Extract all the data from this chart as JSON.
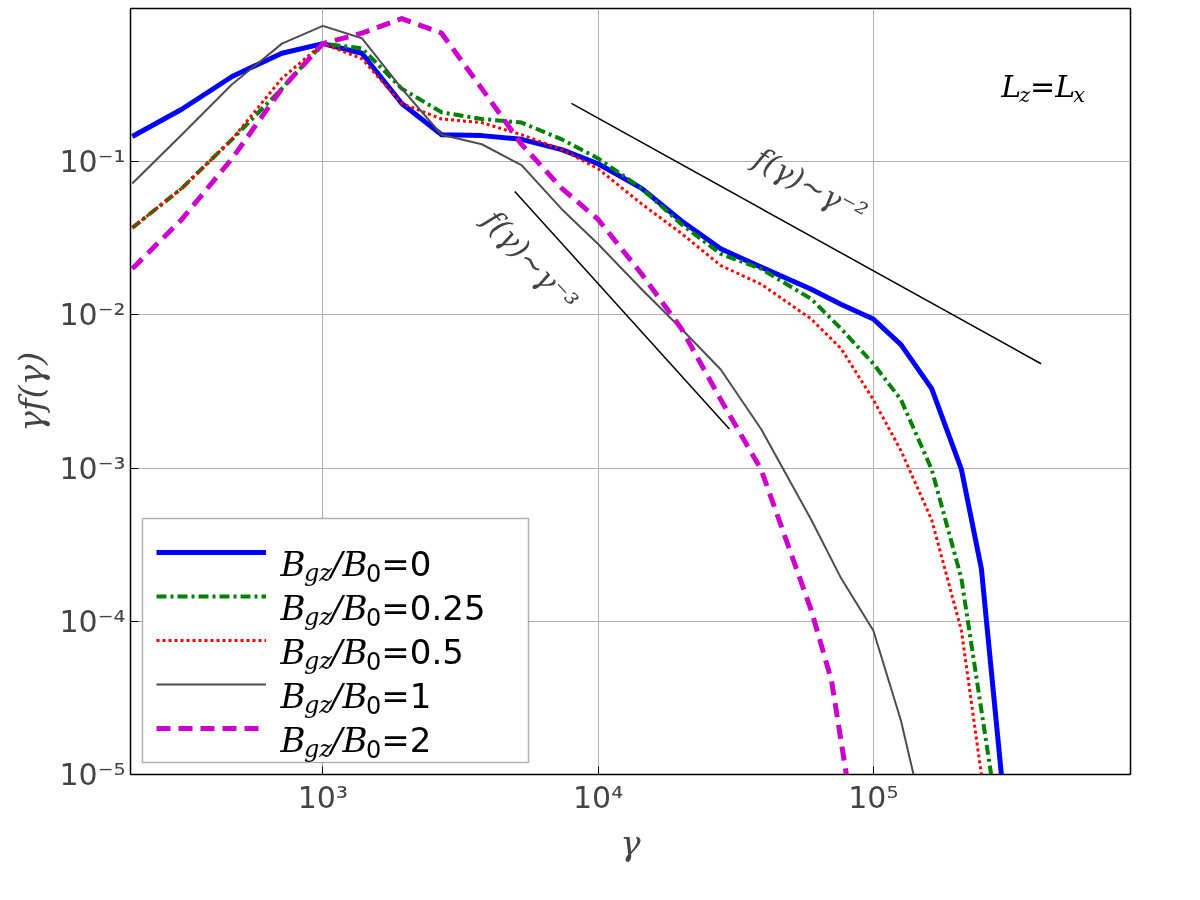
{
  "chart_data": {
    "type": "line",
    "xlabel": "γ",
    "ylabel": "γf(γ)",
    "log": "xy",
    "grid": true,
    "legend": "bottom left",
    "xlim": [
      200,
      860000
    ],
    "ylim": [
      1e-05,
      1
    ],
    "xticks": [
      {
        "value": 1000,
        "label": "10³"
      },
      {
        "value": 10000,
        "label": "10⁴"
      },
      {
        "value": 100000,
        "label": "10⁵"
      }
    ],
    "yticks": [
      {
        "value": 1e-05,
        "label": "10⁻⁵"
      },
      {
        "value": 0.0001,
        "label": "10⁻⁴"
      },
      {
        "value": 0.001,
        "label": "10⁻³"
      },
      {
        "value": 0.01,
        "label": "10⁻²"
      },
      {
        "value": 0.1,
        "label": "10⁻¹"
      }
    ],
    "annotations": [
      "f(γ)∼γ⁻²",
      "f(γ)∼γ⁻³",
      "L$_{z}$=L$_{x}$"
    ],
    "series": [
      {
        "name": "B$_{gz}$/B$_{0}$=0",
        "color": "#0000ff",
        "line_style": "solid",
        "x": [
          203,
          307,
          468,
          710,
          1000,
          1386,
          1935,
          2700,
          3780,
          5270,
          7380,
          10000,
          14400,
          20100,
          27900,
          39100,
          59500,
          76500,
          100000,
          126000,
          163000,
          209000,
          247000,
          292000
        ],
        "values": [
          0.146,
          0.22,
          0.36,
          0.51,
          0.59,
          0.51,
          0.24,
          0.15,
          0.148,
          0.14,
          0.12,
          0.097,
          0.067,
          0.041,
          0.027,
          0.0205,
          0.0147,
          0.0117,
          0.0094,
          0.0064,
          0.0033,
          0.00098,
          0.00022,
          1e-05
        ]
      },
      {
        "name": "B$_{gz}$/B$_{0}$=0.25",
        "color": "#008000",
        "line_style": "dashdot",
        "x": [
          203,
          307,
          468,
          710,
          1000,
          1386,
          1935,
          2700,
          3780,
          5270,
          7380,
          10000,
          14400,
          20100,
          27900,
          39100,
          59500,
          76500,
          100000,
          126000,
          163000,
          209000,
          268000
        ],
        "values": [
          0.037,
          0.067,
          0.14,
          0.3,
          0.59,
          0.55,
          0.3,
          0.21,
          0.19,
          0.18,
          0.14,
          0.105,
          0.067,
          0.039,
          0.025,
          0.02,
          0.0127,
          0.0081,
          0.0048,
          0.0028,
          0.00098,
          0.00019,
          1e-05
        ]
      },
      {
        "name": "B$_{gz}$/B$_{0}$=0.5",
        "color": "#ff0000",
        "line_style": "dotted",
        "x": [
          203,
          307,
          468,
          710,
          1000,
          1386,
          1935,
          2700,
          3780,
          5270,
          7380,
          10000,
          14400,
          20100,
          27900,
          39100,
          59500,
          76500,
          100000,
          126000,
          163000,
          209000,
          247000
        ],
        "values": [
          0.037,
          0.067,
          0.14,
          0.35,
          0.59,
          0.47,
          0.24,
          0.19,
          0.18,
          0.15,
          0.12,
          0.09,
          0.053,
          0.034,
          0.021,
          0.0159,
          0.0094,
          0.006,
          0.0028,
          0.0013,
          0.00046,
          8.7e-05,
          1e-05
        ]
      },
      {
        "name": "B$_{gz}$/B$_{0}$=1",
        "color": "#4d4d4d",
        "line_style": "solid",
        "x": [
          203,
          307,
          468,
          710,
          1000,
          1386,
          1935,
          2700,
          3780,
          5270,
          7380,
          10000,
          14400,
          20100,
          27900,
          39100,
          59500,
          76500,
          100000,
          126000,
          140000
        ],
        "values": [
          0.072,
          0.15,
          0.32,
          0.59,
          0.77,
          0.64,
          0.3,
          0.15,
          0.13,
          0.095,
          0.049,
          0.029,
          0.0147,
          0.0081,
          0.0044,
          0.0018,
          0.00046,
          0.00019,
          8.7e-05,
          2.25e-05,
          1e-05
        ]
      },
      {
        "name": "B$_{gz}$/B$_{0}$=2",
        "color": "#cc00cc",
        "line_style": "dashed",
        "x": [
          203,
          307,
          468,
          710,
          1000,
          1386,
          1935,
          2700,
          3780,
          5270,
          7380,
          10000,
          14400,
          20100,
          27900,
          39100,
          59500,
          70500,
          79800
        ],
        "values": [
          0.02,
          0.042,
          0.105,
          0.3,
          0.59,
          0.69,
          0.86,
          0.69,
          0.3,
          0.13,
          0.067,
          0.042,
          0.0185,
          0.0081,
          0.0028,
          0.00098,
          0.000118,
          4.1e-05,
          1e-05
        ]
      },
      {
        "color": "#000000",
        "line_style": "solid",
        "x": [
          8000,
          407000
        ],
        "values": [
          0.24,
          0.0048
        ]
      },
      {
        "color": "#000000",
        "line_style": "solid",
        "x": [
          4980,
          30000
        ],
        "values": [
          0.064,
          0.0018
        ]
      }
    ]
  }
}
